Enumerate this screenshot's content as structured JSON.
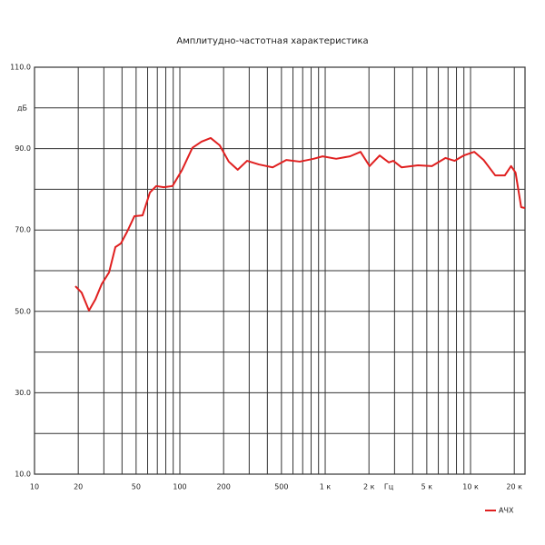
{
  "chart_data": {
    "type": "line",
    "title": "Амплитудно-частотная характеристика",
    "x_label": "Гц",
    "y_label": "дБ",
    "log_x": true,
    "xlim": [
      10,
      23700
    ],
    "ylim": [
      10,
      110
    ],
    "xticks": [
      10,
      20,
      50,
      100,
      200,
      500,
      {
        "value": 1000,
        "label": "1 к"
      },
      {
        "value": 2000,
        "label": "2 к"
      },
      {
        "value": 5000,
        "label": "5 к"
      },
      {
        "value": 10000,
        "label": "10 к"
      },
      {
        "value": 20000,
        "label": "20 к"
      }
    ],
    "x_minor_ticks": [
      30,
      40,
      60,
      70,
      80,
      90,
      300,
      400,
      600,
      700,
      800,
      900,
      3000,
      4000,
      6000,
      7000,
      8000,
      9000
    ],
    "yticks": [
      {
        "value": 10,
        "label": "10.0"
      },
      {
        "value": 30,
        "label": "30.0"
      },
      {
        "value": 50,
        "label": "50.0"
      },
      {
        "value": 70,
        "label": "70.0"
      },
      {
        "value": 90,
        "label": "90.0"
      },
      {
        "value": 110,
        "label": "110.0"
      }
    ],
    "y_minor_ticks": [
      20,
      40,
      60,
      80,
      100
    ],
    "grid": true,
    "legend": "bottom-right",
    "x": [
      19.1,
      21.1,
      23.7,
      26.2,
      29,
      32.6,
      36,
      39.3,
      43.4,
      48.7,
      55.4,
      62.2,
      68.8,
      77.4,
      89,
      103,
      122,
      141,
      163,
      188,
      217,
      250,
      290,
      350,
      435,
      540,
      668,
      832,
      960,
      1190,
      1480,
      1750,
      2020,
      2370,
      2740,
      2940,
      3350,
      4350,
      5420,
      6730,
      7780,
      8970,
      10600,
      12300,
      14800,
      17200,
      19000,
      20400,
      22300,
      23700
    ],
    "series": [
      {
        "name": "АЧХ",
        "color": "#e02020",
        "values": [
          56.2,
          54.6,
          50.2,
          52.9,
          56.7,
          59.6,
          65.8,
          66.7,
          69.6,
          73.4,
          73.6,
          79.2,
          80.8,
          80.5,
          80.8,
          84.6,
          90.2,
          91.7,
          92.6,
          90.8,
          86.8,
          84.8,
          87,
          86.1,
          85.4,
          87.2,
          86.8,
          87.5,
          88.1,
          87.5,
          88.1,
          89.2,
          85.7,
          88.3,
          86.6,
          87,
          85.4,
          85.9,
          85.7,
          87.7,
          87,
          88.3,
          89.2,
          87.2,
          83.4,
          83.4,
          85.7,
          84.1,
          75.6,
          75.4
        ]
      }
    ]
  }
}
